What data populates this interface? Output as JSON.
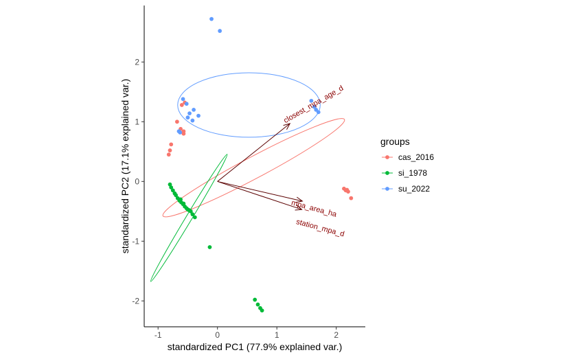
{
  "chart_data": {
    "type": "scatter",
    "xlabel": "standardized PC1 (77.9% explained var.)",
    "ylabel": "standardized PC2 (17.1% explained var.)",
    "xlim": [
      -1.1,
      2.5
    ],
    "ylim": [
      -2.4,
      3.0
    ],
    "x_ticks": [
      -1,
      0,
      1,
      2
    ],
    "y_ticks": [
      -2,
      -1,
      0,
      1,
      2
    ],
    "grid": false,
    "legend": {
      "title": "groups",
      "placement": "right"
    },
    "series": [
      {
        "name": "cas_2016",
        "color": "#F8766D",
        "points": [
          [
            -0.55,
            1.32
          ],
          [
            -0.6,
            1.28
          ],
          [
            -0.68,
            1.0
          ],
          [
            -0.62,
            0.88
          ],
          [
            -0.57,
            0.84
          ],
          [
            -0.57,
            0.8
          ],
          [
            -0.78,
            0.62
          ],
          [
            -0.8,
            0.52
          ],
          [
            -0.82,
            0.45
          ],
          [
            2.13,
            -0.12
          ],
          [
            2.16,
            -0.15
          ],
          [
            2.18,
            -0.14
          ],
          [
            2.2,
            -0.17
          ],
          [
            2.25,
            -0.28
          ]
        ],
        "ellipse": {
          "cx": 0.61,
          "cy": 0.23,
          "rx": 1.73,
          "ry": 0.18,
          "angle_deg": -28
        }
      },
      {
        "name": "si_1978",
        "color": "#00BA38",
        "points": [
          [
            -0.8,
            -0.05
          ],
          [
            -0.78,
            -0.1
          ],
          [
            -0.75,
            -0.15
          ],
          [
            -0.72,
            -0.2
          ],
          [
            -0.7,
            -0.23
          ],
          [
            -0.67,
            -0.28
          ],
          [
            -0.64,
            -0.32
          ],
          [
            -0.61,
            -0.35
          ],
          [
            -0.58,
            -0.38
          ],
          [
            -0.55,
            -0.42
          ],
          [
            -0.52,
            -0.45
          ],
          [
            -0.48,
            -0.48
          ],
          [
            -0.45,
            -0.5
          ],
          [
            -0.42,
            -0.55
          ],
          [
            -0.38,
            -0.6
          ],
          [
            -0.62,
            -0.3
          ],
          [
            -0.57,
            -0.37
          ],
          [
            -0.5,
            -0.47
          ],
          [
            -0.13,
            -1.1
          ],
          [
            0.63,
            -1.98
          ],
          [
            0.68,
            -2.06
          ],
          [
            0.72,
            -2.12
          ],
          [
            0.75,
            -2.16
          ]
        ],
        "ellipse": {
          "cx": -0.48,
          "cy": -0.61,
          "rx": 1.25,
          "ry": 0.05,
          "angle_deg": -59
        }
      },
      {
        "name": "su_2022",
        "color": "#619CFF",
        "points": [
          [
            -0.1,
            2.72
          ],
          [
            0.04,
            2.52
          ],
          [
            -0.58,
            1.38
          ],
          [
            -0.52,
            1.3
          ],
          [
            -0.4,
            1.2
          ],
          [
            -0.32,
            1.1
          ],
          [
            -0.47,
            1.14
          ],
          [
            -0.5,
            1.07
          ],
          [
            -0.42,
            1.02
          ],
          [
            -0.63,
            0.82
          ],
          [
            -0.65,
            0.84
          ],
          [
            1.58,
            1.35
          ],
          [
            1.63,
            1.25
          ],
          [
            1.66,
            1.2
          ],
          [
            1.7,
            1.16
          ]
        ],
        "ellipse": {
          "cx": 0.53,
          "cy": 1.28,
          "rx": 1.2,
          "ry": 0.54,
          "angle_deg": 0
        }
      }
    ],
    "loadings": [
      {
        "name": "closest_mpa_age_d",
        "x": 1.22,
        "y": 0.97
      },
      {
        "name": "mpa_area_ha",
        "x": 1.43,
        "y": -0.33
      },
      {
        "name": "station_mpa_d",
        "x": 1.42,
        "y": -0.47
      }
    ]
  }
}
